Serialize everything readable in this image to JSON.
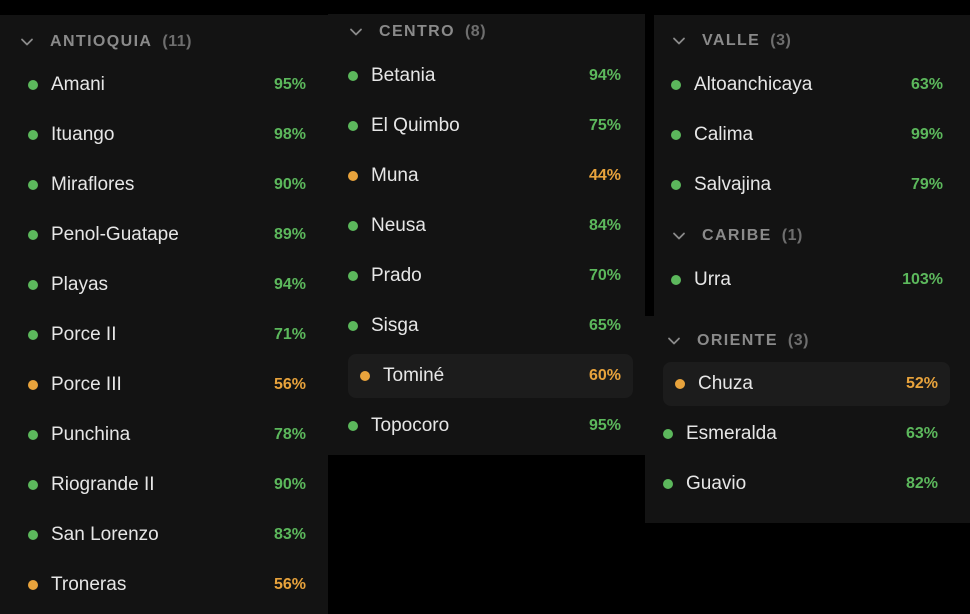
{
  "colors": {
    "ok": "#5cb85c",
    "warn": "#e8a33c"
  },
  "icons": {
    "collapse": "chevron-down-icon"
  },
  "groups": {
    "antioquia": {
      "name": "ANTIOQUIA",
      "count": "(11)",
      "items": [
        {
          "name": "Amani",
          "pct": "95%",
          "status": "ok"
        },
        {
          "name": "Ituango",
          "pct": "98%",
          "status": "ok"
        },
        {
          "name": "Miraflores",
          "pct": "90%",
          "status": "ok"
        },
        {
          "name": "Penol-Guatape",
          "pct": "89%",
          "status": "ok"
        },
        {
          "name": "Playas",
          "pct": "94%",
          "status": "ok"
        },
        {
          "name": "Porce II",
          "pct": "71%",
          "status": "ok"
        },
        {
          "name": "Porce III",
          "pct": "56%",
          "status": "warn"
        },
        {
          "name": "Punchina",
          "pct": "78%",
          "status": "ok"
        },
        {
          "name": "Riogrande II",
          "pct": "90%",
          "status": "ok"
        },
        {
          "name": "San Lorenzo",
          "pct": "83%",
          "status": "ok"
        },
        {
          "name": "Troneras",
          "pct": "56%",
          "status": "warn"
        }
      ]
    },
    "centro": {
      "name": "CENTRO",
      "count": "(8)",
      "items": [
        {
          "name": "Betania",
          "pct": "94%",
          "status": "ok"
        },
        {
          "name": "El Quimbo",
          "pct": "75%",
          "status": "ok"
        },
        {
          "name": "Muna",
          "pct": "44%",
          "status": "warn"
        },
        {
          "name": "Neusa",
          "pct": "84%",
          "status": "ok"
        },
        {
          "name": "Prado",
          "pct": "70%",
          "status": "ok"
        },
        {
          "name": "Sisga",
          "pct": "65%",
          "status": "ok"
        },
        {
          "name": "Tominé",
          "pct": "60%",
          "status": "warn"
        },
        {
          "name": "Topocoro",
          "pct": "95%",
          "status": "ok"
        }
      ]
    },
    "valle": {
      "name": "VALLE",
      "count": "(3)",
      "items": [
        {
          "name": "Altoanchicaya",
          "pct": "63%",
          "status": "ok"
        },
        {
          "name": "Calima",
          "pct": "99%",
          "status": "ok"
        },
        {
          "name": "Salvajina",
          "pct": "79%",
          "status": "ok"
        }
      ]
    },
    "caribe": {
      "name": "CARIBE",
      "count": "(1)",
      "items": [
        {
          "name": "Urra",
          "pct": "103%",
          "status": "ok"
        }
      ]
    },
    "oriente": {
      "name": "ORIENTE",
      "count": "(3)",
      "items": [
        {
          "name": "Chuza",
          "pct": "52%",
          "status": "warn"
        },
        {
          "name": "Esmeralda",
          "pct": "63%",
          "status": "ok"
        },
        {
          "name": "Guavio",
          "pct": "82%",
          "status": "ok"
        }
      ]
    }
  }
}
